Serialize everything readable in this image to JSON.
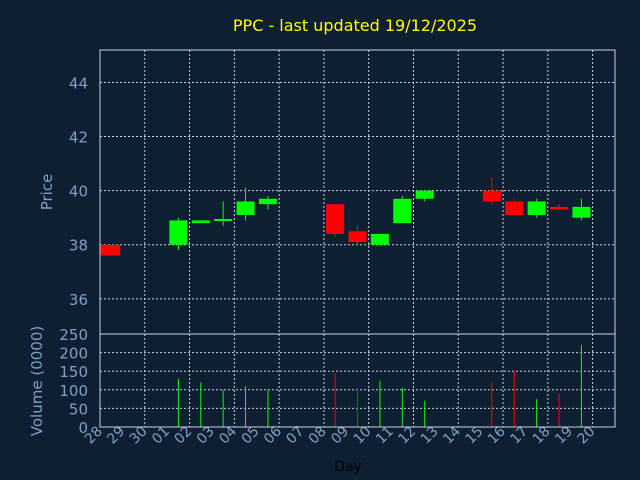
{
  "chart_data": {
    "type": "candlestick",
    "title": "PPC - last updated 19/12/2025",
    "price_panel": {
      "ylabel": "Price",
      "ylim": [
        34.7,
        45.2
      ],
      "yticks": [
        "36",
        "38",
        "40",
        "42",
        "44"
      ],
      "ytick_values": [
        36,
        38,
        40,
        42,
        44
      ],
      "grid": true
    },
    "volume_panel": {
      "ylabel": "Volume (0000)",
      "ylim": [
        0,
        250
      ],
      "yticks": [
        "0",
        "50",
        "100",
        "150",
        "200",
        "250"
      ],
      "ytick_values": [
        0,
        50,
        100,
        150,
        200,
        250
      ],
      "grid": true
    },
    "xlabel": "Day",
    "days": [
      "28",
      "29",
      "30",
      "01",
      "02",
      "03",
      "04",
      "05",
      "06",
      "07",
      "08",
      "09",
      "10",
      "11",
      "12",
      "13",
      "14",
      "15",
      "16",
      "17",
      "18",
      "19",
      "20"
    ],
    "candles": [
      {
        "day": "28",
        "open": 38.0,
        "close": 37.6,
        "high": 38.0,
        "low": 37.6,
        "volume": null
      },
      {
        "day": "01",
        "open": 38.0,
        "close": 38.9,
        "high": 39.0,
        "low": 37.8,
        "volume": 130
      },
      {
        "day": "02",
        "open": 38.8,
        "close": 38.9,
        "high": 38.9,
        "low": 38.8,
        "volume": 120
      },
      {
        "day": "03",
        "open": 38.9,
        "close": 38.95,
        "high": 39.6,
        "low": 38.7,
        "volume": 100
      },
      {
        "day": "04",
        "open": 39.1,
        "close": 39.6,
        "high": 40.1,
        "low": 38.9,
        "volume": 110
      },
      {
        "day": "05",
        "open": 39.5,
        "close": 39.7,
        "high": 39.8,
        "low": 39.3,
        "volume": 100
      },
      {
        "day": "08",
        "open": 39.5,
        "close": 38.4,
        "high": 39.5,
        "low": 38.3,
        "volume": 145
      },
      {
        "day": "09",
        "open": 38.5,
        "close": 38.1,
        "high": 38.7,
        "low": 38.0,
        "volume": 105
      },
      {
        "day": "10",
        "open": 38.0,
        "close": 38.4,
        "high": 38.4,
        "low": 38.0,
        "volume": 125
      },
      {
        "day": "11",
        "open": 38.8,
        "close": 39.7,
        "high": 39.8,
        "low": 38.8,
        "volume": 105
      },
      {
        "day": "12",
        "open": 39.7,
        "close": 40.0,
        "high": 40.0,
        "low": 39.6,
        "volume": 70
      },
      {
        "day": "15",
        "open": 40.0,
        "close": 39.6,
        "high": 40.5,
        "low": 39.5,
        "volume": 120
      },
      {
        "day": "16",
        "open": 39.6,
        "close": 39.1,
        "high": 39.7,
        "low": 39.1,
        "volume": 150
      },
      {
        "day": "17",
        "open": 39.1,
        "close": 39.6,
        "high": 39.7,
        "low": 39.0,
        "volume": 75
      },
      {
        "day": "18",
        "open": 39.4,
        "close": 39.3,
        "high": 39.5,
        "low": 39.3,
        "volume": 90
      },
      {
        "day": "19",
        "open": 39.0,
        "close": 39.4,
        "high": 39.7,
        "low": 38.9,
        "volume": 220
      }
    ],
    "colors": {
      "background": "#0f1f33",
      "up": "#00ff00",
      "down": "#ff0000",
      "grid": "#c8d2dc",
      "title": "#ffff00",
      "axis_text": "#7fa0c0"
    }
  }
}
